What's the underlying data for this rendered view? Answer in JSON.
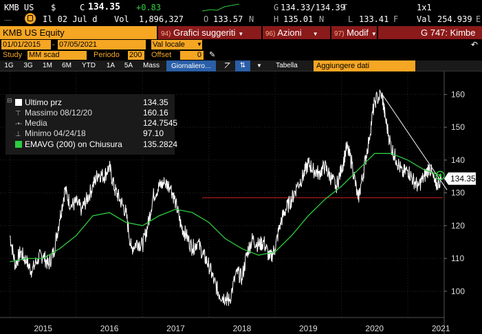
{
  "quote": {
    "ticker": "KMB US",
    "currency_symbol": "$",
    "last_label": "C",
    "last": "134.35",
    "change": "+0.83",
    "bid_ask_label": "G",
    "bid_ask": "134.33/134.39",
    "bid_ask_flag": "T",
    "size": "1x1",
    "note": "Il 02 Jul d",
    "volume_label": "Vol",
    "volume": "1,896,327",
    "open_label": "O",
    "open": "133.57",
    "open_flag": "N",
    "high_label": "H",
    "high": "135.01",
    "high_flag": "N",
    "low_label": "L",
    "low": "133.41",
    "low_flag": "F",
    "val_label": "Val",
    "val": "254.939",
    "val_suffix": "E"
  },
  "titlebar": {
    "security": "KMB US Equity",
    "menu1_num": "94)",
    "menu1": "Grafici suggeriti",
    "menu2_num": "96)",
    "menu2": "Azioni",
    "menu3_num": "97)",
    "menu3": "Modif",
    "right": "G 747: Kimbe"
  },
  "dates": {
    "start": "01/01/2015",
    "end": "07/05/2021",
    "currency": "Val locale"
  },
  "study": {
    "study_label": "Study",
    "study_value": "MM scad",
    "period_label": "Periodo",
    "period_value": "200",
    "offset_label": "Offset",
    "offset_value": "0"
  },
  "toolbar": {
    "ranges": [
      "1G",
      "3G",
      "1M",
      "6M",
      "YTD",
      "1A",
      "5A",
      "Mass"
    ],
    "frequency": "Giornaliero",
    "table": "Tabella",
    "add_data": "Aggiungere dati"
  },
  "legend": {
    "last_label": "Ultimo prz",
    "last_value": "134.35",
    "high_label": "Massimo 08/12/20",
    "high_value": "160.16",
    "avg_label": "Media",
    "avg_value": "124.7545",
    "low_label": "Minimo 04/24/18",
    "low_value": "97.10",
    "ema_label": "EMAVG (200)  on Chiusura",
    "ema_value": "135.2824"
  },
  "colors": {
    "price": "#ffffff",
    "ema": "#2ecc40",
    "support": "#d0231f",
    "trendline": "#ffffff",
    "orange": "#f5a623",
    "menu": "#8b1a1a",
    "last_tag_bg": "#ffffff"
  },
  "chart_data": {
    "type": "line",
    "ylim": [
      92,
      167
    ],
    "yticks": [
      100,
      110,
      120,
      130,
      140,
      150,
      160
    ],
    "xlim": [
      2014.85,
      2021.55
    ],
    "xticks": [
      "2015",
      "2016",
      "2017",
      "2018",
      "2019",
      "2020",
      "2021"
    ],
    "last_value_tag": "134.35",
    "series": [
      {
        "name": "Ultimo prz",
        "x": [
          2015.0,
          2015.08,
          2015.16,
          2015.25,
          2015.33,
          2015.42,
          2015.5,
          2015.58,
          2015.66,
          2015.75,
          2015.83,
          2015.92,
          2016.0,
          2016.08,
          2016.16,
          2016.25,
          2016.33,
          2016.42,
          2016.5,
          2016.58,
          2016.66,
          2016.75,
          2016.83,
          2016.92,
          2017.0,
          2017.08,
          2017.16,
          2017.25,
          2017.33,
          2017.42,
          2017.5,
          2017.58,
          2017.66,
          2017.75,
          2017.83,
          2017.92,
          2018.0,
          2018.08,
          2018.16,
          2018.25,
          2018.31,
          2018.42,
          2018.5,
          2018.58,
          2018.66,
          2018.75,
          2018.83,
          2018.92,
          2019.0,
          2019.08,
          2019.16,
          2019.25,
          2019.33,
          2019.42,
          2019.5,
          2019.58,
          2019.66,
          2019.75,
          2019.83,
          2019.92,
          2020.0,
          2020.08,
          2020.16,
          2020.25,
          2020.33,
          2020.42,
          2020.5,
          2020.61,
          2020.66,
          2020.75,
          2020.83,
          2020.92,
          2021.0,
          2021.08,
          2021.16,
          2021.25,
          2021.33,
          2021.42,
          2021.51
        ],
        "values": [
          117,
          108,
          112,
          109,
          106,
          110,
          111,
          108,
          112,
          122,
          131,
          126,
          127,
          125,
          128,
          132,
          136,
          135,
          138,
          131,
          128,
          124,
          113,
          115,
          114,
          120,
          129,
          132,
          133,
          132,
          127,
          120,
          117,
          113,
          115,
          111,
          108,
          103,
          99,
          98,
          97.1,
          106,
          104,
          112,
          116,
          114,
          115,
          110,
          113,
          121,
          125,
          128,
          132,
          135,
          139,
          137,
          136,
          138,
          135,
          132,
          137,
          144,
          139,
          128,
          136,
          147,
          158,
          160.16,
          153,
          144,
          140,
          136,
          137,
          134,
          132,
          135,
          138,
          132,
          134.35
        ]
      },
      {
        "name": "EMAVG (200)  on Chiusura",
        "x": [
          2015.0,
          2015.25,
          2015.5,
          2015.75,
          2016.0,
          2016.25,
          2016.5,
          2016.75,
          2017.0,
          2017.25,
          2017.5,
          2017.75,
          2018.0,
          2018.25,
          2018.5,
          2018.75,
          2019.0,
          2019.25,
          2019.5,
          2019.75,
          2020.0,
          2020.25,
          2020.5,
          2020.75,
          2021.0,
          2021.25,
          2021.51
        ],
        "values": [
          109,
          110,
          110,
          113,
          117,
          123,
          124,
          121,
          120,
          123,
          125,
          124,
          121,
          116,
          113,
          111,
          112,
          117,
          123,
          128,
          132,
          137,
          142,
          142,
          140,
          137,
          135.28
        ]
      }
    ],
    "support_level": 128.5,
    "trendline": {
      "x": [
        2020.61,
        2021.51
      ],
      "y": [
        160.16,
        131.5
      ]
    }
  }
}
